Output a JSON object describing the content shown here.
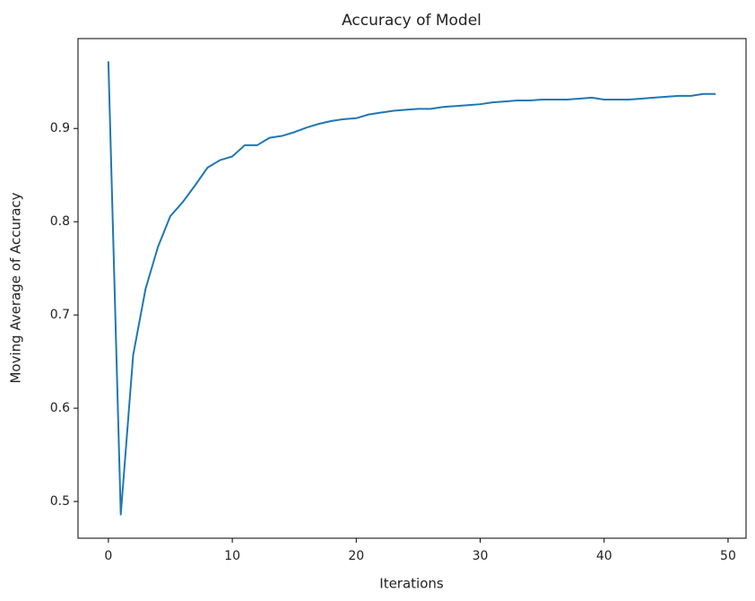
{
  "chart_data": {
    "type": "line",
    "title": "Accuracy of Model",
    "xlabel": "Iterations",
    "ylabel": "Moving Average of Accuracy",
    "x": [
      0,
      1,
      2,
      3,
      4,
      5,
      6,
      7,
      8,
      9,
      10,
      11,
      12,
      13,
      14,
      15,
      16,
      17,
      18,
      19,
      20,
      21,
      22,
      23,
      24,
      25,
      26,
      27,
      28,
      29,
      30,
      31,
      32,
      33,
      34,
      35,
      36,
      37,
      38,
      39,
      40,
      41,
      42,
      43,
      44,
      45,
      46,
      47,
      48,
      49
    ],
    "values": [
      0.972,
      0.486,
      0.657,
      0.728,
      0.773,
      0.806,
      0.821,
      0.839,
      0.858,
      0.866,
      0.87,
      0.882,
      0.882,
      0.89,
      0.892,
      0.896,
      0.901,
      0.905,
      0.908,
      0.91,
      0.911,
      0.915,
      0.917,
      0.919,
      0.92,
      0.921,
      0.921,
      0.923,
      0.924,
      0.925,
      0.926,
      0.928,
      0.929,
      0.93,
      0.93,
      0.931,
      0.931,
      0.931,
      0.932,
      0.933,
      0.931,
      0.931,
      0.931,
      0.932,
      0.933,
      0.934,
      0.935,
      0.935,
      0.937,
      0.937
    ],
    "color": "#1f77b4",
    "xlim": [
      -2.45,
      51.45
    ],
    "ylim": [
      0.4606,
      0.9964
    ],
    "xticks": [
      0,
      10,
      20,
      30,
      40,
      50
    ],
    "yticks": [
      0.5,
      0.6,
      0.7,
      0.8,
      0.9
    ],
    "grid": false
  }
}
